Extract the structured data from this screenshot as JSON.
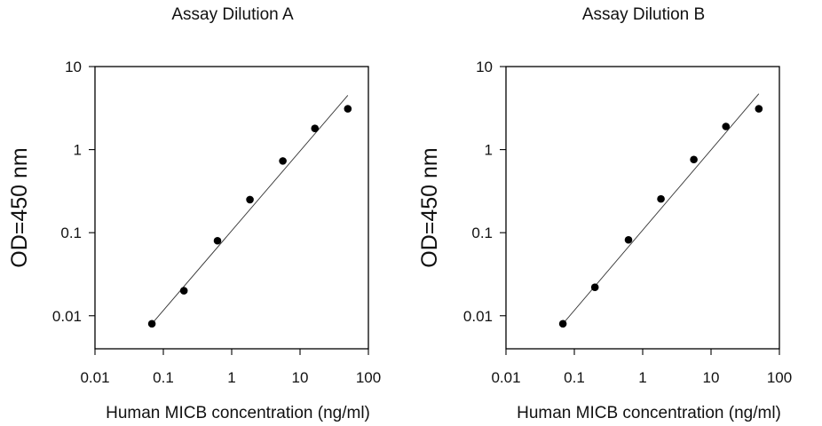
{
  "chart_data": [
    {
      "type": "scatter",
      "title": "Assay Dilution A",
      "xlabel": "Human MICB concentration (ng/ml)",
      "ylabel": "OD=450 nm",
      "x_scale": "log",
      "y_scale": "log",
      "xlim": [
        0.01,
        100
      ],
      "ylim": [
        0.004,
        10
      ],
      "x_ticks": [
        0.01,
        0.1,
        1,
        10,
        100
      ],
      "x_tick_labels": [
        "0.01",
        "0.1",
        "1",
        "10",
        "100"
      ],
      "y_ticks": [
        0.01,
        0.1,
        1,
        10
      ],
      "y_tick_labels": [
        "0.01",
        "0.1",
        "1",
        "10"
      ],
      "grid": false,
      "legend": "none",
      "series": [
        {
          "x": [
            0.068,
            0.2,
            0.62,
            1.85,
            5.6,
            16.5,
            50
          ],
          "y": [
            0.008,
            0.02,
            0.08,
            0.25,
            0.73,
            1.8,
            3.1
          ]
        }
      ],
      "fit_line": {
        "x": [
          0.068,
          50
        ],
        "y": [
          0.008,
          4.5
        ]
      }
    },
    {
      "type": "scatter",
      "title": "Assay Dilution B",
      "xlabel": "Human MICB concentration (ng/ml)",
      "ylabel": "OD=450 nm",
      "x_scale": "log",
      "y_scale": "log",
      "xlim": [
        0.01,
        100
      ],
      "ylim": [
        0.004,
        10
      ],
      "x_ticks": [
        0.01,
        0.1,
        1,
        10,
        100
      ],
      "x_tick_labels": [
        "0.01",
        "0.1",
        "1",
        "10",
        "100"
      ],
      "y_ticks": [
        0.01,
        0.1,
        1,
        10
      ],
      "y_tick_labels": [
        "0.01",
        "0.1",
        "1",
        "10"
      ],
      "grid": false,
      "legend": "none",
      "series": [
        {
          "x": [
            0.068,
            0.2,
            0.62,
            1.85,
            5.6,
            16.5,
            50
          ],
          "y": [
            0.008,
            0.022,
            0.082,
            0.255,
            0.76,
            1.9,
            3.1
          ]
        }
      ],
      "fit_line": {
        "x": [
          0.068,
          50
        ],
        "y": [
          0.008,
          4.7
        ]
      }
    }
  ]
}
